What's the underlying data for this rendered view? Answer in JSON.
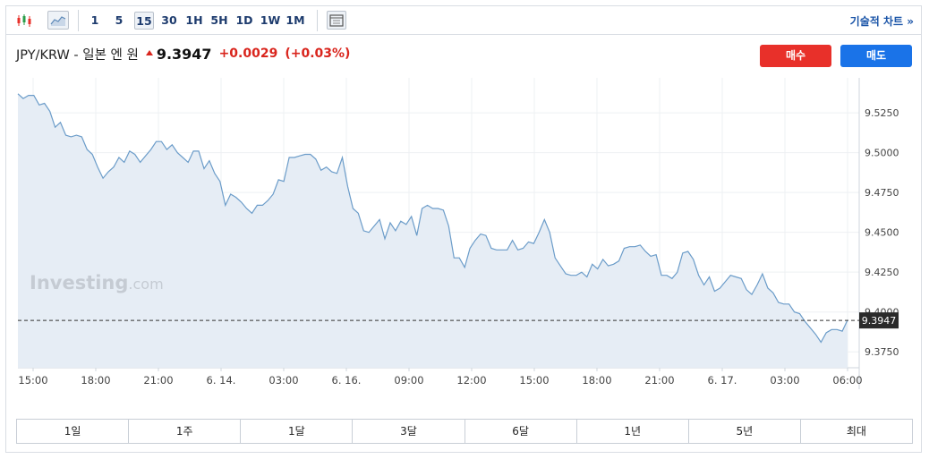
{
  "toolbar": {
    "chart_type_icons": [
      "candlestick-icon",
      "area-chart-icon"
    ],
    "intervals": [
      "1",
      "5",
      "15",
      "30",
      "1H",
      "5H",
      "1D",
      "1W",
      "1M"
    ],
    "active_interval": "15",
    "layout_icon": "layout-icon",
    "tech_chart_label": "기술적 차트",
    "tech_chart_chevron": "»"
  },
  "header": {
    "pair": "JPY/KRW - 일본 엔 원",
    "price": "9.3947",
    "change": "+0.0029",
    "change_pct": "(+0.03%)",
    "change_color": "#d9251d"
  },
  "buttons": {
    "buy": "매수",
    "sell": "매도"
  },
  "watermark": {
    "brand": "Investing",
    "suffix": ".com"
  },
  "ranges": [
    "1일",
    "1주",
    "1달",
    "3달",
    "6달",
    "1년",
    "5년",
    "최대"
  ],
  "chart_data": {
    "type": "area",
    "title": "",
    "xlabel": "",
    "ylabel": "",
    "line_color": "#6b9cc9",
    "fill_color": "#e6edf5",
    "ylim": [
      9.365,
      9.547
    ],
    "yticks": [
      "9.5250",
      "9.5000",
      "9.4750",
      "9.4500",
      "9.4250",
      "9.4000",
      "9.3750"
    ],
    "xticks": [
      "15:00",
      "18:00",
      "21:00",
      "6. 14.",
      "03:00",
      "6. 16.",
      "09:00",
      "12:00",
      "15:00",
      "18:00",
      "21:00",
      "6. 17.",
      "03:00",
      "06:00"
    ],
    "last_value": "9.3947",
    "y": [
      9.537,
      9.534,
      9.536,
      9.536,
      9.53,
      9.531,
      9.526,
      9.516,
      9.519,
      9.511,
      9.51,
      9.511,
      9.51,
      9.502,
      9.499,
      9.491,
      9.484,
      9.488,
      9.491,
      9.497,
      9.494,
      9.501,
      9.499,
      9.494,
      9.498,
      9.502,
      9.507,
      9.507,
      9.502,
      9.505,
      9.5,
      9.497,
      9.494,
      9.501,
      9.501,
      9.49,
      9.495,
      9.487,
      9.482,
      9.467,
      9.474,
      9.472,
      9.469,
      9.465,
      9.462,
      9.467,
      9.467,
      9.47,
      9.474,
      9.483,
      9.482,
      9.497,
      9.497,
      9.498,
      9.499,
      9.499,
      9.496,
      9.489,
      9.491,
      9.488,
      9.487,
      9.497,
      9.479,
      9.465,
      9.462,
      9.451,
      9.45,
      9.454,
      9.458,
      9.446,
      9.456,
      9.451,
      9.457,
      9.455,
      9.46,
      9.448,
      9.465,
      9.467,
      9.465,
      9.465,
      9.464,
      9.454,
      9.434,
      9.434,
      9.428,
      9.44,
      9.445,
      9.449,
      9.448,
      9.44,
      9.439,
      9.439,
      9.439,
      9.445,
      9.439,
      9.44,
      9.444,
      9.443,
      9.45,
      9.458,
      9.45,
      9.434,
      9.429,
      9.424,
      9.423,
      9.423,
      9.425,
      9.422,
      9.43,
      9.427,
      9.433,
      9.429,
      9.43,
      9.432,
      9.44,
      9.441,
      9.441,
      9.442,
      9.438,
      9.435,
      9.436,
      9.423,
      9.423,
      9.421,
      9.425,
      9.437,
      9.438,
      9.433,
      9.423,
      9.417,
      9.422,
      9.413,
      9.415,
      9.419,
      9.423,
      9.422,
      9.421,
      9.414,
      9.411,
      9.417,
      9.424,
      9.415,
      9.412,
      9.406,
      9.405,
      9.405,
      9.4,
      9.399,
      9.394,
      9.39,
      9.386,
      9.381,
      9.387,
      9.389,
      9.389,
      9.388,
      9.395
    ]
  }
}
